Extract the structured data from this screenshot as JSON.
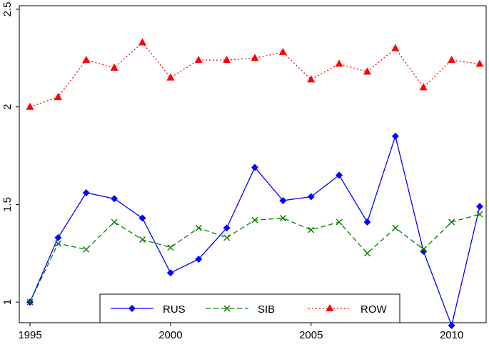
{
  "chart_data": {
    "type": "line",
    "title": "",
    "xlabel": "",
    "ylabel": "",
    "x": [
      1995,
      1996,
      1997,
      1998,
      1999,
      2000,
      2001,
      2002,
      2003,
      2004,
      2005,
      2006,
      2007,
      2008,
      2009,
      2010,
      2011
    ],
    "xlim": [
      1995,
      2011
    ],
    "ylim": [
      0.92,
      2.5
    ],
    "xticks": [
      "1995",
      "2000",
      "2005",
      "2010"
    ],
    "yticks": [
      "1",
      "1.5",
      "2",
      "2.5"
    ],
    "grid": false,
    "legend_position": "bottom-center",
    "series": [
      {
        "name": "RUS",
        "color": "#0000ff",
        "line_style": "solid",
        "marker": "diamond",
        "values": [
          1.0,
          1.33,
          1.56,
          1.53,
          1.43,
          1.15,
          1.22,
          1.38,
          1.69,
          1.52,
          1.54,
          1.65,
          1.41,
          1.85,
          1.26,
          0.88,
          1.49
        ]
      },
      {
        "name": "SIB",
        "color": "#008000",
        "line_style": "dashed",
        "marker": "x",
        "values": [
          1.0,
          1.3,
          1.27,
          1.41,
          1.32,
          1.28,
          1.38,
          1.33,
          1.42,
          1.43,
          1.37,
          1.41,
          1.25,
          1.38,
          1.27,
          1.41,
          1.45
        ]
      },
      {
        "name": "ROW",
        "color": "#ff0000",
        "line_style": "dotted",
        "marker": "triangle",
        "values": [
          2.0,
          2.05,
          2.24,
          2.2,
          2.33,
          2.15,
          2.24,
          2.24,
          2.25,
          2.28,
          2.14,
          2.22,
          2.18,
          2.3,
          2.1,
          2.24,
          2.22
        ]
      }
    ]
  }
}
